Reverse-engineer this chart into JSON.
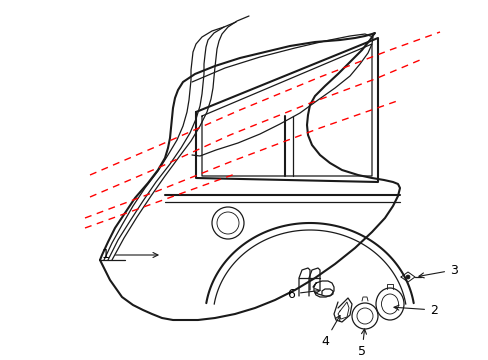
{
  "bg_color": "#ffffff",
  "line_color": "#1a1a1a",
  "red_dash_color": "#ff0000",
  "label_color": "#000000",
  "figsize": [
    4.89,
    3.6
  ],
  "dpi": 100
}
